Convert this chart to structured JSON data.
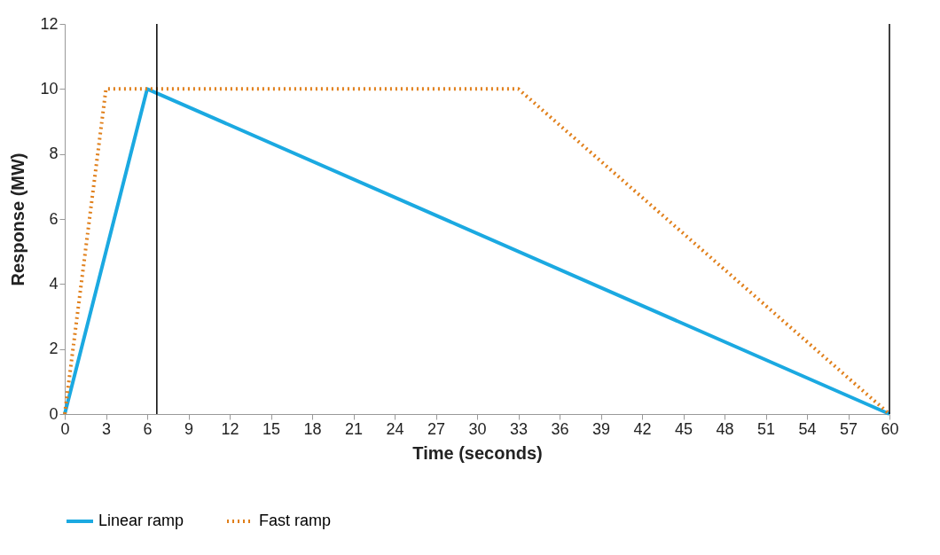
{
  "chart_data": {
    "type": "line",
    "xlabel": "Time (seconds)",
    "ylabel": "Response (MW)",
    "xlim": [
      0,
      60
    ],
    "xticks": [
      0,
      3,
      6,
      9,
      12,
      15,
      18,
      21,
      24,
      27,
      30,
      33,
      36,
      39,
      42,
      45,
      48,
      51,
      54,
      57,
      60
    ],
    "ylim": [
      0,
      12
    ],
    "yticks": [
      0,
      2,
      4,
      6,
      8,
      10,
      12
    ],
    "grid": false,
    "legend": "bottom",
    "series": [
      {
        "name": "Linear ramp",
        "color": "#1ba9e1",
        "line_style": "solid",
        "x": [
          0,
          6,
          60
        ],
        "values": [
          0,
          10,
          0
        ]
      },
      {
        "name": "Fast ramp",
        "color": "#e07f1a",
        "line_style": "dotted",
        "x": [
          0,
          3,
          33,
          60
        ],
        "values": [
          0,
          10,
          10,
          0
        ]
      }
    ],
    "ref_lines": [
      {
        "axis": "x",
        "value": 6.7,
        "color": "#000000"
      },
      {
        "axis": "x",
        "value": 60,
        "color": "#000000"
      }
    ]
  }
}
